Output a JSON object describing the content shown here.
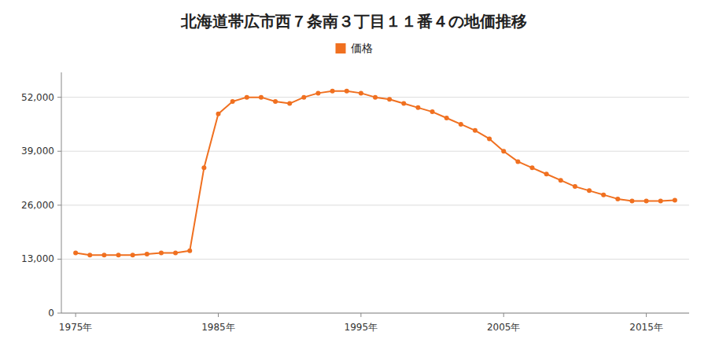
{
  "chart_data": {
    "type": "line",
    "title": "北海道帯広市西７条南３丁目１１番４の地価推移",
    "x": [
      1975,
      1976,
      1977,
      1978,
      1979,
      1980,
      1981,
      1982,
      1983,
      1984,
      1985,
      1986,
      1987,
      1988,
      1989,
      1990,
      1991,
      1992,
      1993,
      1994,
      1995,
      1996,
      1997,
      1998,
      1999,
      2000,
      2001,
      2002,
      2003,
      2004,
      2005,
      2006,
      2007,
      2008,
      2009,
      2010,
      2011,
      2012,
      2013,
      2014,
      2015,
      2016,
      2017
    ],
    "series": [
      {
        "name": "価格",
        "color": "#f07020",
        "marker": "circle",
        "line_style": "solid",
        "values": [
          14500,
          14000,
          14000,
          14000,
          14000,
          14200,
          14500,
          14500,
          15000,
          35000,
          48000,
          51000,
          52000,
          52000,
          51000,
          50500,
          52000,
          53000,
          53500,
          53500,
          53000,
          52000,
          51500,
          50500,
          49500,
          48500,
          47000,
          45500,
          44000,
          42000,
          39000,
          36500,
          35000,
          33500,
          32000,
          30500,
          29500,
          28500,
          27500,
          27000,
          27000,
          27000,
          27200
        ]
      }
    ],
    "xlim": [
      1974,
      2018
    ],
    "xticks": [
      {
        "value": 1975,
        "label": "1975年"
      },
      {
        "value": 1985,
        "label": "1985年"
      },
      {
        "value": 1995,
        "label": "1995年"
      },
      {
        "value": 2005,
        "label": "2005年"
      },
      {
        "value": 2015,
        "label": "2015年"
      }
    ],
    "ylim": [
      0,
      58000
    ],
    "yticks": [
      0,
      {
        "value": 13000,
        "label": "13,000"
      },
      {
        "value": 26000,
        "label": "26,000"
      },
      {
        "value": 39000,
        "label": "39,000"
      },
      {
        "value": 52000,
        "label": "52,000"
      }
    ],
    "grid": "y",
    "legend": "top"
  }
}
